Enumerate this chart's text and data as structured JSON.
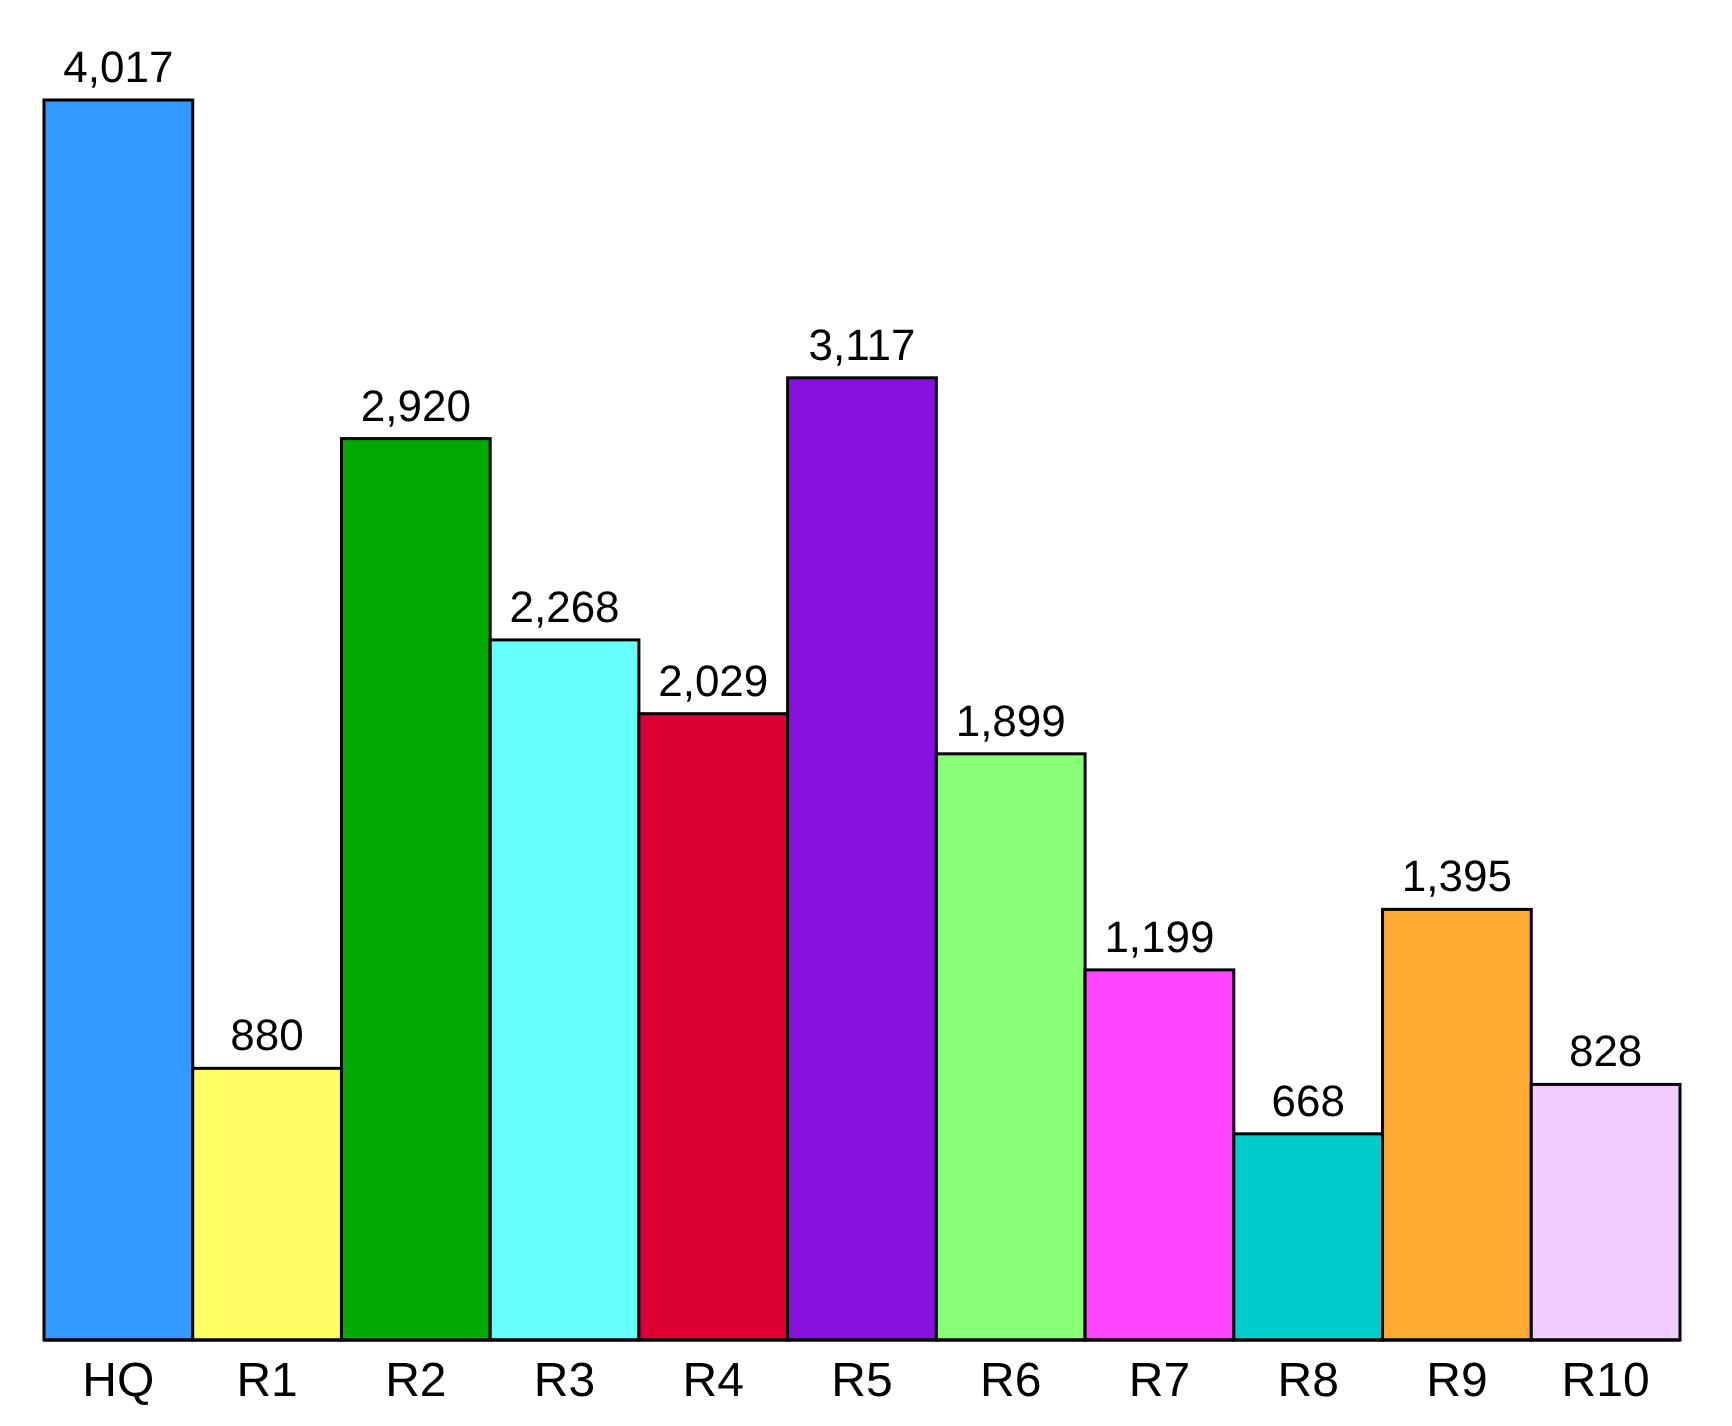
{
  "chart_data": {
    "type": "bar",
    "categories": [
      "HQ",
      "R1",
      "R2",
      "R3",
      "R4",
      "R5",
      "R6",
      "R7",
      "R8",
      "R9",
      "R10"
    ],
    "values": [
      4017,
      880,
      2920,
      2268,
      2029,
      3117,
      1899,
      1199,
      668,
      1395,
      828
    ],
    "colors": [
      "#3399ff",
      "#ffff66",
      "#00aa00",
      "#66ffff",
      "#dd0033",
      "#8811dd",
      "#88ff77",
      "#ff44ff",
      "#00cccc",
      "#ffaa33",
      "#f0ccff"
    ],
    "value_labels": [
      "4,017",
      "880",
      "2,920",
      "2,268",
      "2,029",
      "3,117",
      "1,899",
      "1,199",
      "668",
      "1,395",
      "828"
    ]
  }
}
